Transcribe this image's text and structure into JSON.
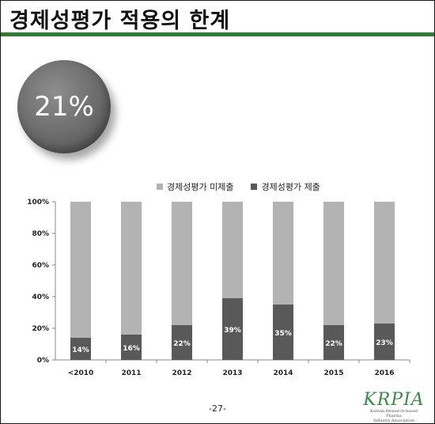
{
  "title": "경제성평가 적용의 한계",
  "badge": {
    "value": "21%"
  },
  "colors": {
    "accent": "#2e7d32",
    "not_submitted": "#b3b3b3",
    "submitted": "#595959"
  },
  "chart_data": {
    "type": "bar",
    "stacked": true,
    "title": "",
    "xlabel": "",
    "ylabel": "",
    "ylim": [
      0,
      100
    ],
    "y_ticks": [
      "0%",
      "20%",
      "40%",
      "60%",
      "80%",
      "100%"
    ],
    "categories": [
      "<2010",
      "2011",
      "2012",
      "2013",
      "2014",
      "2015",
      "2016"
    ],
    "series": [
      {
        "name": "경제성평가 제출",
        "values": [
          14,
          16,
          22,
          39,
          35,
          22,
          23
        ],
        "labels": [
          "14%",
          "16%",
          "22%",
          "39%",
          "35%",
          "22%",
          "23%"
        ]
      },
      {
        "name": "경제성평가 미제출",
        "values": [
          86,
          84,
          78,
          61,
          65,
          78,
          77
        ]
      }
    ],
    "legend": [
      "경제성평가 미제출",
      "경제성평가 제출"
    ],
    "legend_position": "top",
    "grid": false
  },
  "footer": {
    "page": "-27-"
  },
  "logo": {
    "name": "KRPIA",
    "subtitle": "Korean Research-based Pharma Industry Association"
  }
}
